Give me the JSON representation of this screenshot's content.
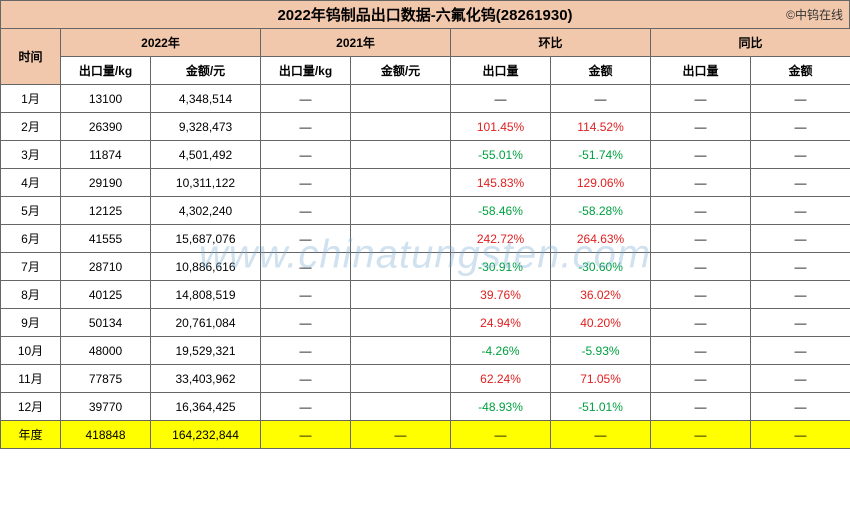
{
  "title": "2022年钨制品出口数据-六氟化钨(28261930)",
  "copyright": "©中钨在线",
  "watermark": "www.chinatungsten.com",
  "colors": {
    "header_bg": "#f2c8ac",
    "border": "#666666",
    "positive": "#e02020",
    "negative": "#00a040",
    "sum_bg": "#ffff00",
    "background": "#ffffff"
  },
  "header": {
    "time": "时间",
    "y2022": "2022年",
    "y2021": "2021年",
    "mom": "环比",
    "yoy": "同比",
    "qty_kg": "出口量/kg",
    "amt_yuan": "金额/元",
    "qty": "出口量",
    "amt": "金额"
  },
  "rows": [
    {
      "m": "1月",
      "q22": "13100",
      "a22": "4,348,514",
      "q21": "—",
      "a21": "",
      "mq": "—",
      "ma": "—",
      "yq": "—",
      "ya": "—",
      "mq_s": "d",
      "ma_s": "d"
    },
    {
      "m": "2月",
      "q22": "26390",
      "a22": "9,328,473",
      "q21": "—",
      "a21": "",
      "mq": "101.45%",
      "ma": "114.52%",
      "yq": "—",
      "ya": "—",
      "mq_s": "p",
      "ma_s": "p"
    },
    {
      "m": "3月",
      "q22": "11874",
      "a22": "4,501,492",
      "q21": "—",
      "a21": "",
      "mq": "-55.01%",
      "ma": "-51.74%",
      "yq": "—",
      "ya": "—",
      "mq_s": "n",
      "ma_s": "n"
    },
    {
      "m": "4月",
      "q22": "29190",
      "a22": "10,311,122",
      "q21": "—",
      "a21": "",
      "mq": "145.83%",
      "ma": "129.06%",
      "yq": "—",
      "ya": "—",
      "mq_s": "p",
      "ma_s": "p"
    },
    {
      "m": "5月",
      "q22": "12125",
      "a22": "4,302,240",
      "q21": "—",
      "a21": "",
      "mq": "-58.46%",
      "ma": "-58.28%",
      "yq": "—",
      "ya": "—",
      "mq_s": "n",
      "ma_s": "n"
    },
    {
      "m": "6月",
      "q22": "41555",
      "a22": "15,687,076",
      "q21": "—",
      "a21": "",
      "mq": "242.72%",
      "ma": "264.63%",
      "yq": "—",
      "ya": "—",
      "mq_s": "p",
      "ma_s": "p"
    },
    {
      "m": "7月",
      "q22": "28710",
      "a22": "10,886,616",
      "q21": "—",
      "a21": "",
      "mq": "-30.91%",
      "ma": "-30.60%",
      "yq": "—",
      "ya": "—",
      "mq_s": "n",
      "ma_s": "n"
    },
    {
      "m": "8月",
      "q22": "40125",
      "a22": "14,808,519",
      "q21": "—",
      "a21": "",
      "mq": "39.76%",
      "ma": "36.02%",
      "yq": "—",
      "ya": "—",
      "mq_s": "p",
      "ma_s": "p"
    },
    {
      "m": "9月",
      "q22": "50134",
      "a22": "20,761,084",
      "q21": "—",
      "a21": "",
      "mq": "24.94%",
      "ma": "40.20%",
      "yq": "—",
      "ya": "—",
      "mq_s": "p",
      "ma_s": "p"
    },
    {
      "m": "10月",
      "q22": "48000",
      "a22": "19,529,321",
      "q21": "—",
      "a21": "",
      "mq": "-4.26%",
      "ma": "-5.93%",
      "yq": "—",
      "ya": "—",
      "mq_s": "n",
      "ma_s": "n"
    },
    {
      "m": "11月",
      "q22": "77875",
      "a22": "33,403,962",
      "q21": "—",
      "a21": "",
      "mq": "62.24%",
      "ma": "71.05%",
      "yq": "—",
      "ya": "—",
      "mq_s": "p",
      "ma_s": "p"
    },
    {
      "m": "12月",
      "q22": "39770",
      "a22": "16,364,425",
      "q21": "—",
      "a21": "",
      "mq": "-48.93%",
      "ma": "-51.01%",
      "yq": "—",
      "ya": "—",
      "mq_s": "n",
      "ma_s": "n"
    }
  ],
  "sum": {
    "m": "年度",
    "q22": "418848",
    "a22": "164,232,844",
    "q21": "—",
    "a21": "—",
    "mq": "—",
    "ma": "—",
    "yq": "—",
    "ya": "—"
  }
}
